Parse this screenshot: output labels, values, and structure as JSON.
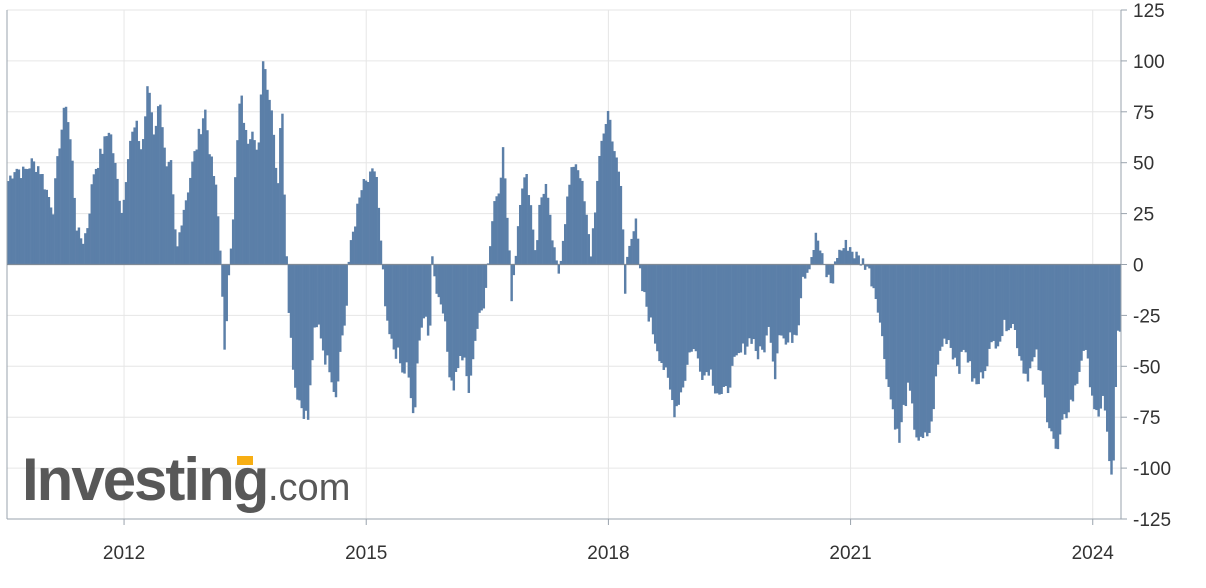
{
  "chart_data": {
    "type": "bar",
    "title": "",
    "xlabel": "",
    "ylabel": "",
    "ylim": [
      -125,
      125
    ],
    "y_ticks": [
      "125",
      "100",
      "75",
      "50",
      "25",
      "0",
      "-25",
      "-50",
      "-75",
      "-100",
      "-125"
    ],
    "x_ticks": [
      "2012",
      "2015",
      "2018",
      "2021",
      "2024"
    ],
    "xlim": [
      2010.55,
      2024.35
    ],
    "grid": true,
    "bar_color": "#5b7fa8",
    "keypoints": [
      [
        2010.55,
        40
      ],
      [
        2010.65,
        48
      ],
      [
        2010.75,
        45
      ],
      [
        2010.85,
        50
      ],
      [
        2010.95,
        48
      ],
      [
        2011.05,
        35
      ],
      [
        2011.12,
        28
      ],
      [
        2011.2,
        60
      ],
      [
        2011.28,
        80
      ],
      [
        2011.35,
        55
      ],
      [
        2011.42,
        15
      ],
      [
        2011.5,
        12
      ],
      [
        2011.55,
        20
      ],
      [
        2011.62,
        45
      ],
      [
        2011.72,
        55
      ],
      [
        2011.82,
        68
      ],
      [
        2011.9,
        45
      ],
      [
        2011.98,
        25
      ],
      [
        2012.06,
        60
      ],
      [
        2012.15,
        68
      ],
      [
        2012.22,
        55
      ],
      [
        2012.3,
        90
      ],
      [
        2012.37,
        65
      ],
      [
        2012.45,
        82
      ],
      [
        2012.52,
        45
      ],
      [
        2012.58,
        48
      ],
      [
        2012.65,
        5
      ],
      [
        2012.72,
        25
      ],
      [
        2012.78,
        35
      ],
      [
        2012.85,
        50
      ],
      [
        2012.92,
        62
      ],
      [
        2013.0,
        77
      ],
      [
        2013.08,
        50
      ],
      [
        2013.13,
        40
      ],
      [
        2013.18,
        15
      ],
      [
        2013.22,
        -15
      ],
      [
        2013.25,
        -52
      ],
      [
        2013.3,
        0
      ],
      [
        2013.36,
        30
      ],
      [
        2013.44,
        85
      ],
      [
        2013.52,
        60
      ],
      [
        2013.6,
        70
      ],
      [
        2013.66,
        50
      ],
      [
        2013.72,
        103
      ],
      [
        2013.78,
        88
      ],
      [
        2013.85,
        70
      ],
      [
        2013.9,
        35
      ],
      [
        2013.95,
        85
      ],
      [
        2014.0,
        20
      ],
      [
        2014.05,
        -30
      ],
      [
        2014.12,
        -60
      ],
      [
        2014.2,
        -70
      ],
      [
        2014.28,
        -76
      ],
      [
        2014.35,
        -35
      ],
      [
        2014.42,
        -30
      ],
      [
        2014.48,
        -45
      ],
      [
        2014.55,
        -50
      ],
      [
        2014.62,
        -65
      ],
      [
        2014.7,
        -35
      ],
      [
        2014.75,
        -25
      ],
      [
        2014.8,
        10
      ],
      [
        2014.88,
        25
      ],
      [
        2014.95,
        38
      ],
      [
        2015.05,
        42
      ],
      [
        2015.12,
        48
      ],
      [
        2015.18,
        10
      ],
      [
        2015.25,
        -30
      ],
      [
        2015.32,
        -40
      ],
      [
        2015.4,
        -45
      ],
      [
        2015.45,
        -55
      ],
      [
        2015.5,
        -50
      ],
      [
        2015.55,
        -65
      ],
      [
        2015.6,
        -78
      ],
      [
        2015.65,
        -35
      ],
      [
        2015.72,
        -25
      ],
      [
        2015.78,
        -40
      ],
      [
        2015.82,
        5
      ],
      [
        2015.88,
        -15
      ],
      [
        2015.95,
        -20
      ],
      [
        2016.02,
        -50
      ],
      [
        2016.08,
        -60
      ],
      [
        2016.14,
        -48
      ],
      [
        2016.2,
        -45
      ],
      [
        2016.28,
        -65
      ],
      [
        2016.33,
        -40
      ],
      [
        2016.38,
        -30
      ],
      [
        2016.45,
        -20
      ],
      [
        2016.52,
        5
      ],
      [
        2016.58,
        30
      ],
      [
        2016.65,
        40
      ],
      [
        2016.7,
        58
      ],
      [
        2016.75,
        20
      ],
      [
        2016.8,
        -15
      ],
      [
        2016.85,
        5
      ],
      [
        2016.92,
        40
      ],
      [
        2017.0,
        42
      ],
      [
        2017.05,
        25
      ],
      [
        2017.1,
        5
      ],
      [
        2017.15,
        30
      ],
      [
        2017.22,
        40
      ],
      [
        2017.28,
        20
      ],
      [
        2017.33,
        5
      ],
      [
        2017.38,
        -5
      ],
      [
        2017.44,
        15
      ],
      [
        2017.5,
        35
      ],
      [
        2017.58,
        52
      ],
      [
        2017.65,
        45
      ],
      [
        2017.72,
        25
      ],
      [
        2017.78,
        5
      ],
      [
        2017.85,
        35
      ],
      [
        2017.92,
        62
      ],
      [
        2018.0,
        76
      ],
      [
        2018.06,
        60
      ],
      [
        2018.12,
        45
      ],
      [
        2018.17,
        35
      ],
      [
        2018.2,
        -20
      ],
      [
        2018.24,
        10
      ],
      [
        2018.28,
        15
      ],
      [
        2018.35,
        20
      ],
      [
        2018.4,
        -10
      ],
      [
        2018.47,
        -20
      ],
      [
        2018.53,
        -30
      ],
      [
        2018.6,
        -40
      ],
      [
        2018.68,
        -50
      ],
      [
        2018.75,
        -60
      ],
      [
        2018.82,
        -72
      ],
      [
        2018.88,
        -65
      ],
      [
        2018.95,
        -55
      ],
      [
        2019.02,
        -40
      ],
      [
        2019.1,
        -45
      ],
      [
        2019.18,
        -55
      ],
      [
        2019.25,
        -50
      ],
      [
        2019.32,
        -60
      ],
      [
        2019.4,
        -65
      ],
      [
        2019.47,
        -62
      ],
      [
        2019.55,
        -50
      ],
      [
        2019.62,
        -45
      ],
      [
        2019.7,
        -40
      ],
      [
        2019.78,
        -35
      ],
      [
        2019.85,
        -45
      ],
      [
        2019.92,
        -42
      ],
      [
        2020.0,
        -30
      ],
      [
        2020.06,
        -55
      ],
      [
        2020.12,
        -30
      ],
      [
        2020.2,
        -40
      ],
      [
        2020.28,
        -35
      ],
      [
        2020.35,
        -30
      ],
      [
        2020.4,
        -5
      ],
      [
        2020.46,
        -3
      ],
      [
        2020.52,
        5
      ],
      [
        2020.58,
        15
      ],
      [
        2020.63,
        5
      ],
      [
        2020.7,
        -5
      ],
      [
        2020.77,
        -10
      ],
      [
        2020.83,
        5
      ],
      [
        2020.9,
        8
      ],
      [
        2020.97,
        10
      ],
      [
        2021.05,
        5
      ],
      [
        2021.12,
        2
      ],
      [
        2021.2,
        0
      ],
      [
        2021.28,
        -10
      ],
      [
        2021.34,
        -20
      ],
      [
        2021.4,
        -40
      ],
      [
        2021.47,
        -60
      ],
      [
        2021.54,
        -75
      ],
      [
        2021.6,
        -88
      ],
      [
        2021.66,
        -70
      ],
      [
        2021.72,
        -60
      ],
      [
        2021.8,
        -82
      ],
      [
        2021.87,
        -88
      ],
      [
        2021.93,
        -85
      ],
      [
        2022.0,
        -80
      ],
      [
        2022.06,
        -55
      ],
      [
        2022.12,
        -40
      ],
      [
        2022.2,
        -35
      ],
      [
        2022.28,
        -45
      ],
      [
        2022.35,
        -50
      ],
      [
        2022.42,
        -40
      ],
      [
        2022.5,
        -55
      ],
      [
        2022.56,
        -60
      ],
      [
        2022.62,
        -55
      ],
      [
        2022.7,
        -45
      ],
      [
        2022.78,
        -38
      ],
      [
        2022.86,
        -35
      ],
      [
        2022.94,
        -28
      ],
      [
        2023.02,
        -30
      ],
      [
        2023.1,
        -45
      ],
      [
        2023.18,
        -55
      ],
      [
        2023.24,
        -50
      ],
      [
        2023.3,
        -45
      ],
      [
        2023.38,
        -60
      ],
      [
        2023.44,
        -75
      ],
      [
        2023.5,
        -82
      ],
      [
        2023.55,
        -95
      ],
      [
        2023.62,
        -80
      ],
      [
        2023.7,
        -70
      ],
      [
        2023.76,
        -65
      ],
      [
        2023.82,
        -55
      ],
      [
        2023.88,
        -40
      ],
      [
        2023.94,
        -50
      ],
      [
        2024.02,
        -70
      ],
      [
        2024.08,
        -80
      ],
      [
        2024.13,
        -60
      ],
      [
        2024.18,
        -85
      ],
      [
        2024.22,
        -105
      ],
      [
        2024.25,
        -107
      ],
      [
        2024.3,
        -35
      ]
    ]
  },
  "watermark": {
    "brand": "Investing",
    "suffix": ".com"
  }
}
